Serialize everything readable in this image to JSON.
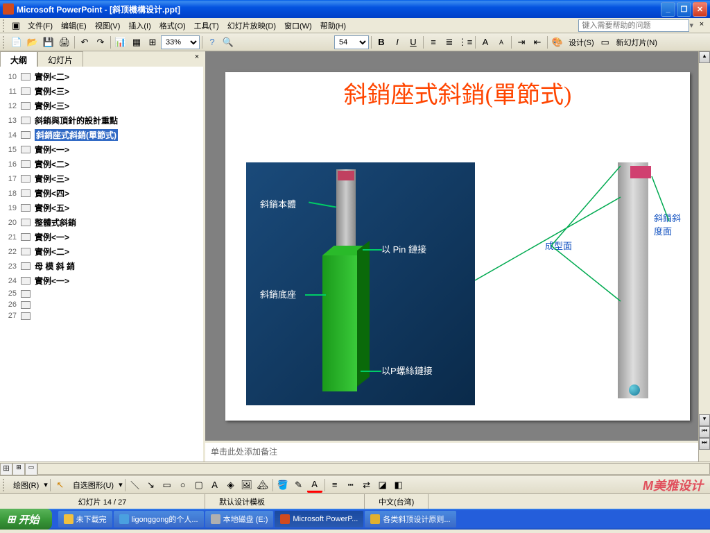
{
  "window": {
    "title": "Microsoft PowerPoint - [斜顶機構设计.ppt]"
  },
  "menu": {
    "items": [
      "文件(F)",
      "编辑(E)",
      "视图(V)",
      "插入(I)",
      "格式(O)",
      "工具(T)",
      "幻灯片放映(D)",
      "窗口(W)",
      "帮助(H)"
    ],
    "help_placeholder": "键入需要帮助的问题"
  },
  "toolbar1": {
    "zoom": "33%",
    "font_size": "54",
    "design_label": "设计(S)",
    "new_slide_label": "新幻灯片(N)"
  },
  "sidebar": {
    "tabs": {
      "outline": "大纲",
      "slides": "幻灯片"
    },
    "items": [
      {
        "num": "10",
        "title": "實例<二>"
      },
      {
        "num": "11",
        "title": "實例<三>"
      },
      {
        "num": "12",
        "title": "實例<三>"
      },
      {
        "num": "13",
        "title": "斜銷與頂針的設計重點"
      },
      {
        "num": "14",
        "title": "斜銷座式斜銷(單節式)",
        "selected": true
      },
      {
        "num": "15",
        "title": "實例<一>"
      },
      {
        "num": "16",
        "title": "實例<二>"
      },
      {
        "num": "17",
        "title": "實例<三>"
      },
      {
        "num": "18",
        "title": "實例<四>"
      },
      {
        "num": "19",
        "title": "實例<五>"
      },
      {
        "num": "20",
        "title": "整體式斜銷"
      },
      {
        "num": "21",
        "title": "實例<一>"
      },
      {
        "num": "22",
        "title": "實例<二>"
      },
      {
        "num": "23",
        "title": "母 模 斜 銷"
      },
      {
        "num": "24",
        "title": "實例<一>"
      },
      {
        "num": "25",
        "title": ""
      },
      {
        "num": "26",
        "title": ""
      },
      {
        "num": "27",
        "title": ""
      }
    ]
  },
  "slide": {
    "title": "斜銷座式斜銷(單節式)",
    "labels": {
      "pin_body": "斜銷本體",
      "pin_connect": "以 Pin 鏈接",
      "base": "斜銷底座",
      "screw_connect": "以P螺絲鏈接",
      "forming_surface": "成型面",
      "angle_surface": "斜銷斜度面"
    },
    "colors": {
      "title_color": "#ff4500",
      "diagram_bg": "#0d3a5f",
      "base_green": "#22aa22",
      "pin_gray": "#aaaaaa",
      "accent_pink": "#c04060",
      "label_white": "#ffffff",
      "label_blue": "#1050c0",
      "arrow_green": "#00aa50"
    }
  },
  "notes": {
    "placeholder": "单击此处添加备注"
  },
  "drawing": {
    "label": "绘图(R)",
    "autoshapes": "自选图形(U)"
  },
  "status": {
    "slide_pos": "幻灯片 14 / 27",
    "template": "默认设计模板",
    "language": "中文(台湾)"
  },
  "watermark": "美雅设计",
  "taskbar": {
    "start": "开始",
    "items": [
      "未下载完",
      "ligonggong的个人...",
      "本地磁盘 (E:)",
      "Microsoft PowerP...",
      "各类斜顶设计原则..."
    ]
  }
}
